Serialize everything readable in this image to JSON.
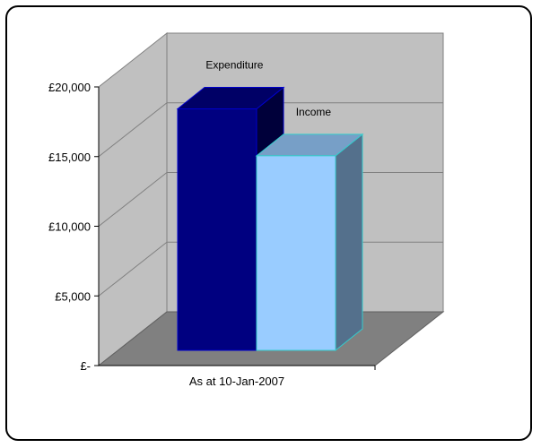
{
  "chart_data": {
    "type": "bar",
    "style": "3d-column",
    "title": "",
    "xlabel": "",
    "ylabel": "",
    "categories": [
      "As at 10-Jan-2007"
    ],
    "series": [
      {
        "name": "Expenditure",
        "values": [
          17500
        ],
        "color": "#000080"
      },
      {
        "name": "Income",
        "values": [
          14100
        ],
        "color": "#99ccff"
      }
    ],
    "y_ticks": [
      {
        "value": 0,
        "label": "£-"
      },
      {
        "value": 5000,
        "label": "£5,000"
      },
      {
        "value": 10000,
        "label": "£10,000"
      },
      {
        "value": 15000,
        "label": "£15,000"
      },
      {
        "value": 20000,
        "label": "£20,000"
      }
    ],
    "ylim": [
      0,
      20000
    ],
    "grid": true,
    "legend": "none",
    "wall_color": "#c0c0c0",
    "floor_color": "#808080"
  }
}
